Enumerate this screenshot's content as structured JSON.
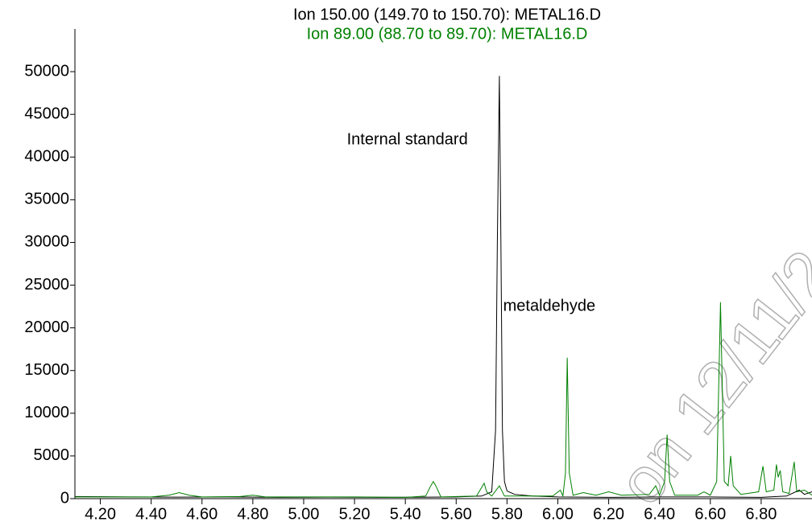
{
  "chart_data": {
    "type": "line",
    "series": [
      {
        "name": "Ion 150.00 (149.70 to 150.70): METAL16.D",
        "color": "#000000",
        "x": [
          4.1,
          4.3,
          4.5,
          4.7,
          4.9,
          5.1,
          5.3,
          5.5,
          5.6,
          5.7,
          5.74,
          5.755,
          5.762,
          5.77,
          5.776,
          5.782,
          5.79,
          5.8,
          5.83,
          5.9,
          6.0,
          6.2,
          6.4,
          6.6,
          6.8,
          6.9,
          6.95,
          6.97,
          7.0
        ],
        "values": [
          250,
          200,
          180,
          200,
          150,
          180,
          150,
          180,
          200,
          300,
          800,
          8000,
          30000,
          49500,
          30000,
          8000,
          2000,
          900,
          500,
          300,
          200,
          150,
          200,
          200,
          150,
          300,
          1000,
          500,
          800
        ]
      },
      {
        "name": "Ion  89.00 (88.70 to 89.70): METAL16.D",
        "color": "#008000",
        "x": [
          4.1,
          4.4,
          4.47,
          4.51,
          4.55,
          4.6,
          4.75,
          4.8,
          4.85,
          5.2,
          5.4,
          5.48,
          5.5,
          5.51,
          5.52,
          5.54,
          5.68,
          5.7,
          5.71,
          5.72,
          5.74,
          5.77,
          5.79,
          5.98,
          6.01,
          6.02,
          6.03,
          6.037,
          6.045,
          6.06,
          6.1,
          6.15,
          6.2,
          6.25,
          6.36,
          6.385,
          6.4,
          6.42,
          6.43,
          6.44,
          6.46,
          6.55,
          6.575,
          6.6,
          6.625,
          6.64,
          6.655,
          6.67,
          6.68,
          6.69,
          6.72,
          6.79,
          6.807,
          6.82,
          6.85,
          6.86,
          6.867,
          6.875,
          6.885,
          6.91,
          6.93,
          6.94,
          6.97,
          7.0
        ],
        "values": [
          200,
          200,
          400,
          700,
          400,
          200,
          250,
          400,
          200,
          200,
          150,
          300,
          1500,
          2000,
          1500,
          200,
          300,
          1300,
          1800,
          800,
          300,
          1500,
          300,
          300,
          1000,
          300,
          3000,
          16500,
          3000,
          400,
          700,
          400,
          800,
          400,
          500,
          1500,
          400,
          2000,
          7500,
          2000,
          400,
          400,
          800,
          400,
          2000,
          23000,
          2000,
          1500,
          5000,
          1500,
          500,
          800,
          3800,
          800,
          1000,
          4000,
          2500,
          3300,
          800,
          600,
          4300,
          800,
          1000,
          400
        ]
      }
    ],
    "annotations": [
      {
        "text": "Internal standard",
        "x": 5.17,
        "y": 42000
      },
      {
        "text": "metaldehyde",
        "x": 5.785,
        "y": 22500
      }
    ],
    "watermark": "on 12/11/2",
    "xlim": [
      4.1,
      7.0
    ],
    "xticks": [
      {
        "value": 4.2,
        "label": "4.20"
      },
      {
        "value": 4.4,
        "label": "4.40"
      },
      {
        "value": 4.6,
        "label": "4.60"
      },
      {
        "value": 4.8,
        "label": "4.80"
      },
      {
        "value": 5.0,
        "label": "5.00"
      },
      {
        "value": 5.2,
        "label": "5.20"
      },
      {
        "value": 5.4,
        "label": "5.40"
      },
      {
        "value": 5.6,
        "label": "5.60"
      },
      {
        "value": 5.8,
        "label": "5.80"
      },
      {
        "value": 6.0,
        "label": "6.00"
      },
      {
        "value": 6.2,
        "label": "6.20"
      },
      {
        "value": 6.4,
        "label": "6.40"
      },
      {
        "value": 6.6,
        "label": "6.60"
      },
      {
        "value": 6.8,
        "label": "6.80"
      }
    ],
    "ylim": [
      0,
      55000
    ],
    "yticks": [
      0,
      5000,
      10000,
      15000,
      20000,
      25000,
      30000,
      35000,
      40000,
      45000,
      50000
    ],
    "grid": false
  }
}
